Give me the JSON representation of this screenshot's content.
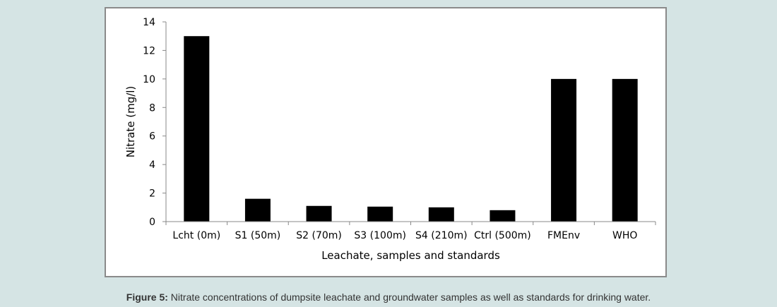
{
  "chart_data": {
    "type": "bar",
    "categories": [
      "Lcht (0m)",
      "S1 (50m)",
      "S2 (70m)",
      "S3 (100m)",
      "S4 (210m)",
      "Ctrl (500m)",
      "FMEnv",
      "WHO"
    ],
    "values": [
      13.0,
      1.6,
      1.1,
      1.05,
      1.0,
      0.8,
      10.0,
      10.0
    ],
    "xlabel": "Leachate, samples and standards",
    "ylabel": "Nitrate (mg/l)",
    "ylim": [
      0,
      14
    ],
    "yticks": [
      0,
      2,
      4,
      6,
      8,
      10,
      12,
      14
    ],
    "grid": false,
    "legend": "none",
    "bar_color": "#000000"
  },
  "caption": {
    "label": "Figure 5:",
    "text": " Nitrate concentrations of dumpsite leachate and groundwater samples as well as standards for drinking water."
  }
}
